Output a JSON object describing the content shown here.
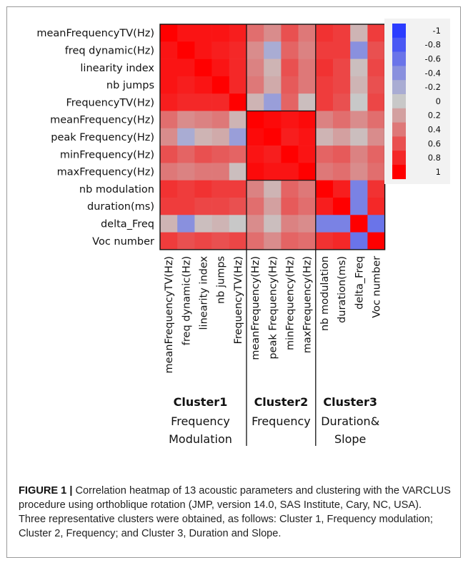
{
  "chart_data": {
    "type": "heatmap",
    "row_labels": [
      "meanFrequencyTV(Hz)",
      "freq dynamic(Hz)",
      "linearity index",
      "nb jumps",
      "FrequencyTV(Hz)",
      "meanFrequency(Hz)",
      "peak Frequency(Hz)",
      "minFrequency(Hz)",
      "maxFrequency(Hz)",
      "nb modulation",
      "duration(ms)",
      "delta_Freq",
      "Voc number"
    ],
    "col_labels": [
      "meanFrequencyTV(Hz)",
      "freq dynamic(Hz)",
      "linearity index",
      "nb jumps",
      "FrequencyTV(Hz)",
      "meanFrequency(Hz)",
      "peak Frequency(Hz)",
      "minFrequency(Hz)",
      "maxFrequency(Hz)",
      "nb modulation",
      "duration(ms)",
      "delta_Freq",
      "Voc number"
    ],
    "values": [
      [
        1,
        0.9,
        0.9,
        0.9,
        0.85,
        0.45,
        0.3,
        0.6,
        0.4,
        0.75,
        0.7,
        0.1,
        0.7
      ],
      [
        0.9,
        1,
        0.9,
        0.85,
        0.8,
        0.3,
        -0.2,
        0.5,
        0.35,
        0.7,
        0.7,
        -0.4,
        0.6
      ],
      [
        0.9,
        0.9,
        1,
        0.9,
        0.8,
        0.35,
        0.1,
        0.6,
        0.4,
        0.75,
        0.65,
        0.05,
        0.65
      ],
      [
        0.9,
        0.85,
        0.9,
        1,
        0.8,
        0.4,
        0.15,
        0.55,
        0.4,
        0.7,
        0.65,
        0.1,
        0.6
      ],
      [
        0.85,
        0.8,
        0.8,
        0.8,
        1,
        0.1,
        -0.3,
        0.5,
        0.05,
        0.7,
        0.6,
        0.0,
        0.65
      ],
      [
        0.45,
        0.3,
        0.35,
        0.4,
        0.1,
        1,
        0.95,
        0.9,
        0.95,
        0.35,
        0.45,
        0.3,
        0.45
      ],
      [
        0.3,
        -0.2,
        0.1,
        0.15,
        -0.3,
        0.95,
        1,
        0.85,
        0.9,
        0.1,
        0.2,
        0.05,
        0.3
      ],
      [
        0.6,
        0.5,
        0.6,
        0.55,
        0.5,
        0.9,
        0.85,
        1,
        0.9,
        0.5,
        0.55,
        0.35,
        0.5
      ],
      [
        0.4,
        0.35,
        0.4,
        0.4,
        0.05,
        0.95,
        0.9,
        0.9,
        1,
        0.4,
        0.45,
        0.3,
        0.45
      ],
      [
        0.75,
        0.7,
        0.75,
        0.7,
        0.7,
        0.35,
        0.1,
        0.5,
        0.4,
        1,
        0.85,
        -0.5,
        0.75
      ],
      [
        0.7,
        0.7,
        0.65,
        0.65,
        0.6,
        0.45,
        0.2,
        0.55,
        0.45,
        0.85,
        1,
        -0.5,
        0.8
      ],
      [
        0.1,
        -0.4,
        0.05,
        0.1,
        0.0,
        0.3,
        0.05,
        0.35,
        0.3,
        -0.5,
        -0.5,
        1,
        -0.6
      ],
      [
        0.7,
        0.6,
        0.65,
        0.6,
        0.65,
        0.45,
        0.3,
        0.5,
        0.45,
        0.75,
        0.8,
        -0.6,
        1
      ]
    ],
    "color_scale": {
      "min": -1,
      "max": 1,
      "low_color": "#2b3cff",
      "mid_color": "#c8c8c8",
      "high_color": "#ff0000"
    },
    "legend_ticks": [
      "-1",
      "-0.8",
      "-0.6",
      "-0.4",
      "-0.2",
      "0",
      "0.2",
      "0.4",
      "0.6",
      "0.8",
      "1"
    ],
    "legend_placement": "top-right",
    "clusters": [
      {
        "title": "Cluster1",
        "subtitle_lines": [
          "Frequency",
          "Modulation"
        ],
        "start_col": 0,
        "end_col": 4
      },
      {
        "title": "Cluster2",
        "subtitle_lines": [
          "Frequency"
        ],
        "start_col": 5,
        "end_col": 8
      },
      {
        "title": "Cluster3",
        "subtitle_lines": [
          "Duration&",
          "Slope"
        ],
        "start_col": 9,
        "end_col": 12
      }
    ]
  },
  "caption": {
    "label": "FIGURE 1 |",
    "text": "Correlation heatmap of 13 acoustic parameters and clustering with the VARCLUS procedure using orthoblique rotation (JMP, version 14.0, SAS Institute, Cary, NC, USA). Three representative clusters were obtained, as follows: Cluster 1, Frequency modulation; Cluster 2, Frequency; and Cluster 3, Duration and Slope."
  }
}
